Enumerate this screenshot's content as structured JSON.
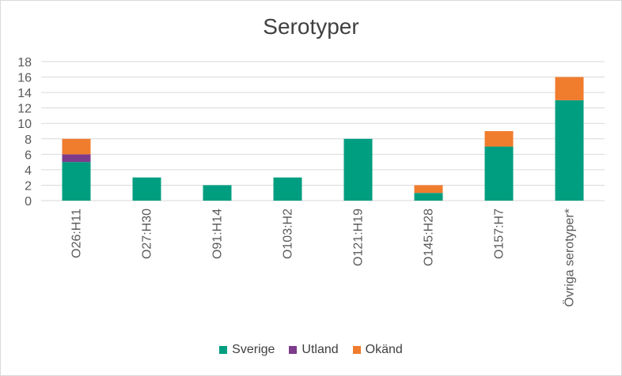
{
  "chart_data": {
    "type": "bar",
    "stacked": true,
    "title": "Serotyper",
    "xlabel": "",
    "ylabel": "",
    "ylim": [
      0,
      18
    ],
    "yticks": [
      0,
      2,
      4,
      6,
      8,
      10,
      12,
      14,
      16,
      18
    ],
    "grid": "horizontal",
    "legend_position": "bottom",
    "categories": [
      "O26:H11",
      "O27:H30",
      "O91:H14",
      "O103:H2",
      "O121:H19",
      "O145:H28",
      "O157:H7",
      "Övriga serotyper*"
    ],
    "series": [
      {
        "name": "Sverige",
        "color": "#009e80",
        "values": [
          5,
          3,
          2,
          3,
          8,
          1,
          7,
          13
        ]
      },
      {
        "name": "Utland",
        "color": "#7e3b8c",
        "values": [
          1,
          0,
          0,
          0,
          0,
          0,
          0,
          0
        ]
      },
      {
        "name": "Okänd",
        "color": "#f07c2e",
        "values": [
          2,
          0,
          0,
          0,
          0,
          1,
          2,
          3
        ]
      }
    ]
  }
}
